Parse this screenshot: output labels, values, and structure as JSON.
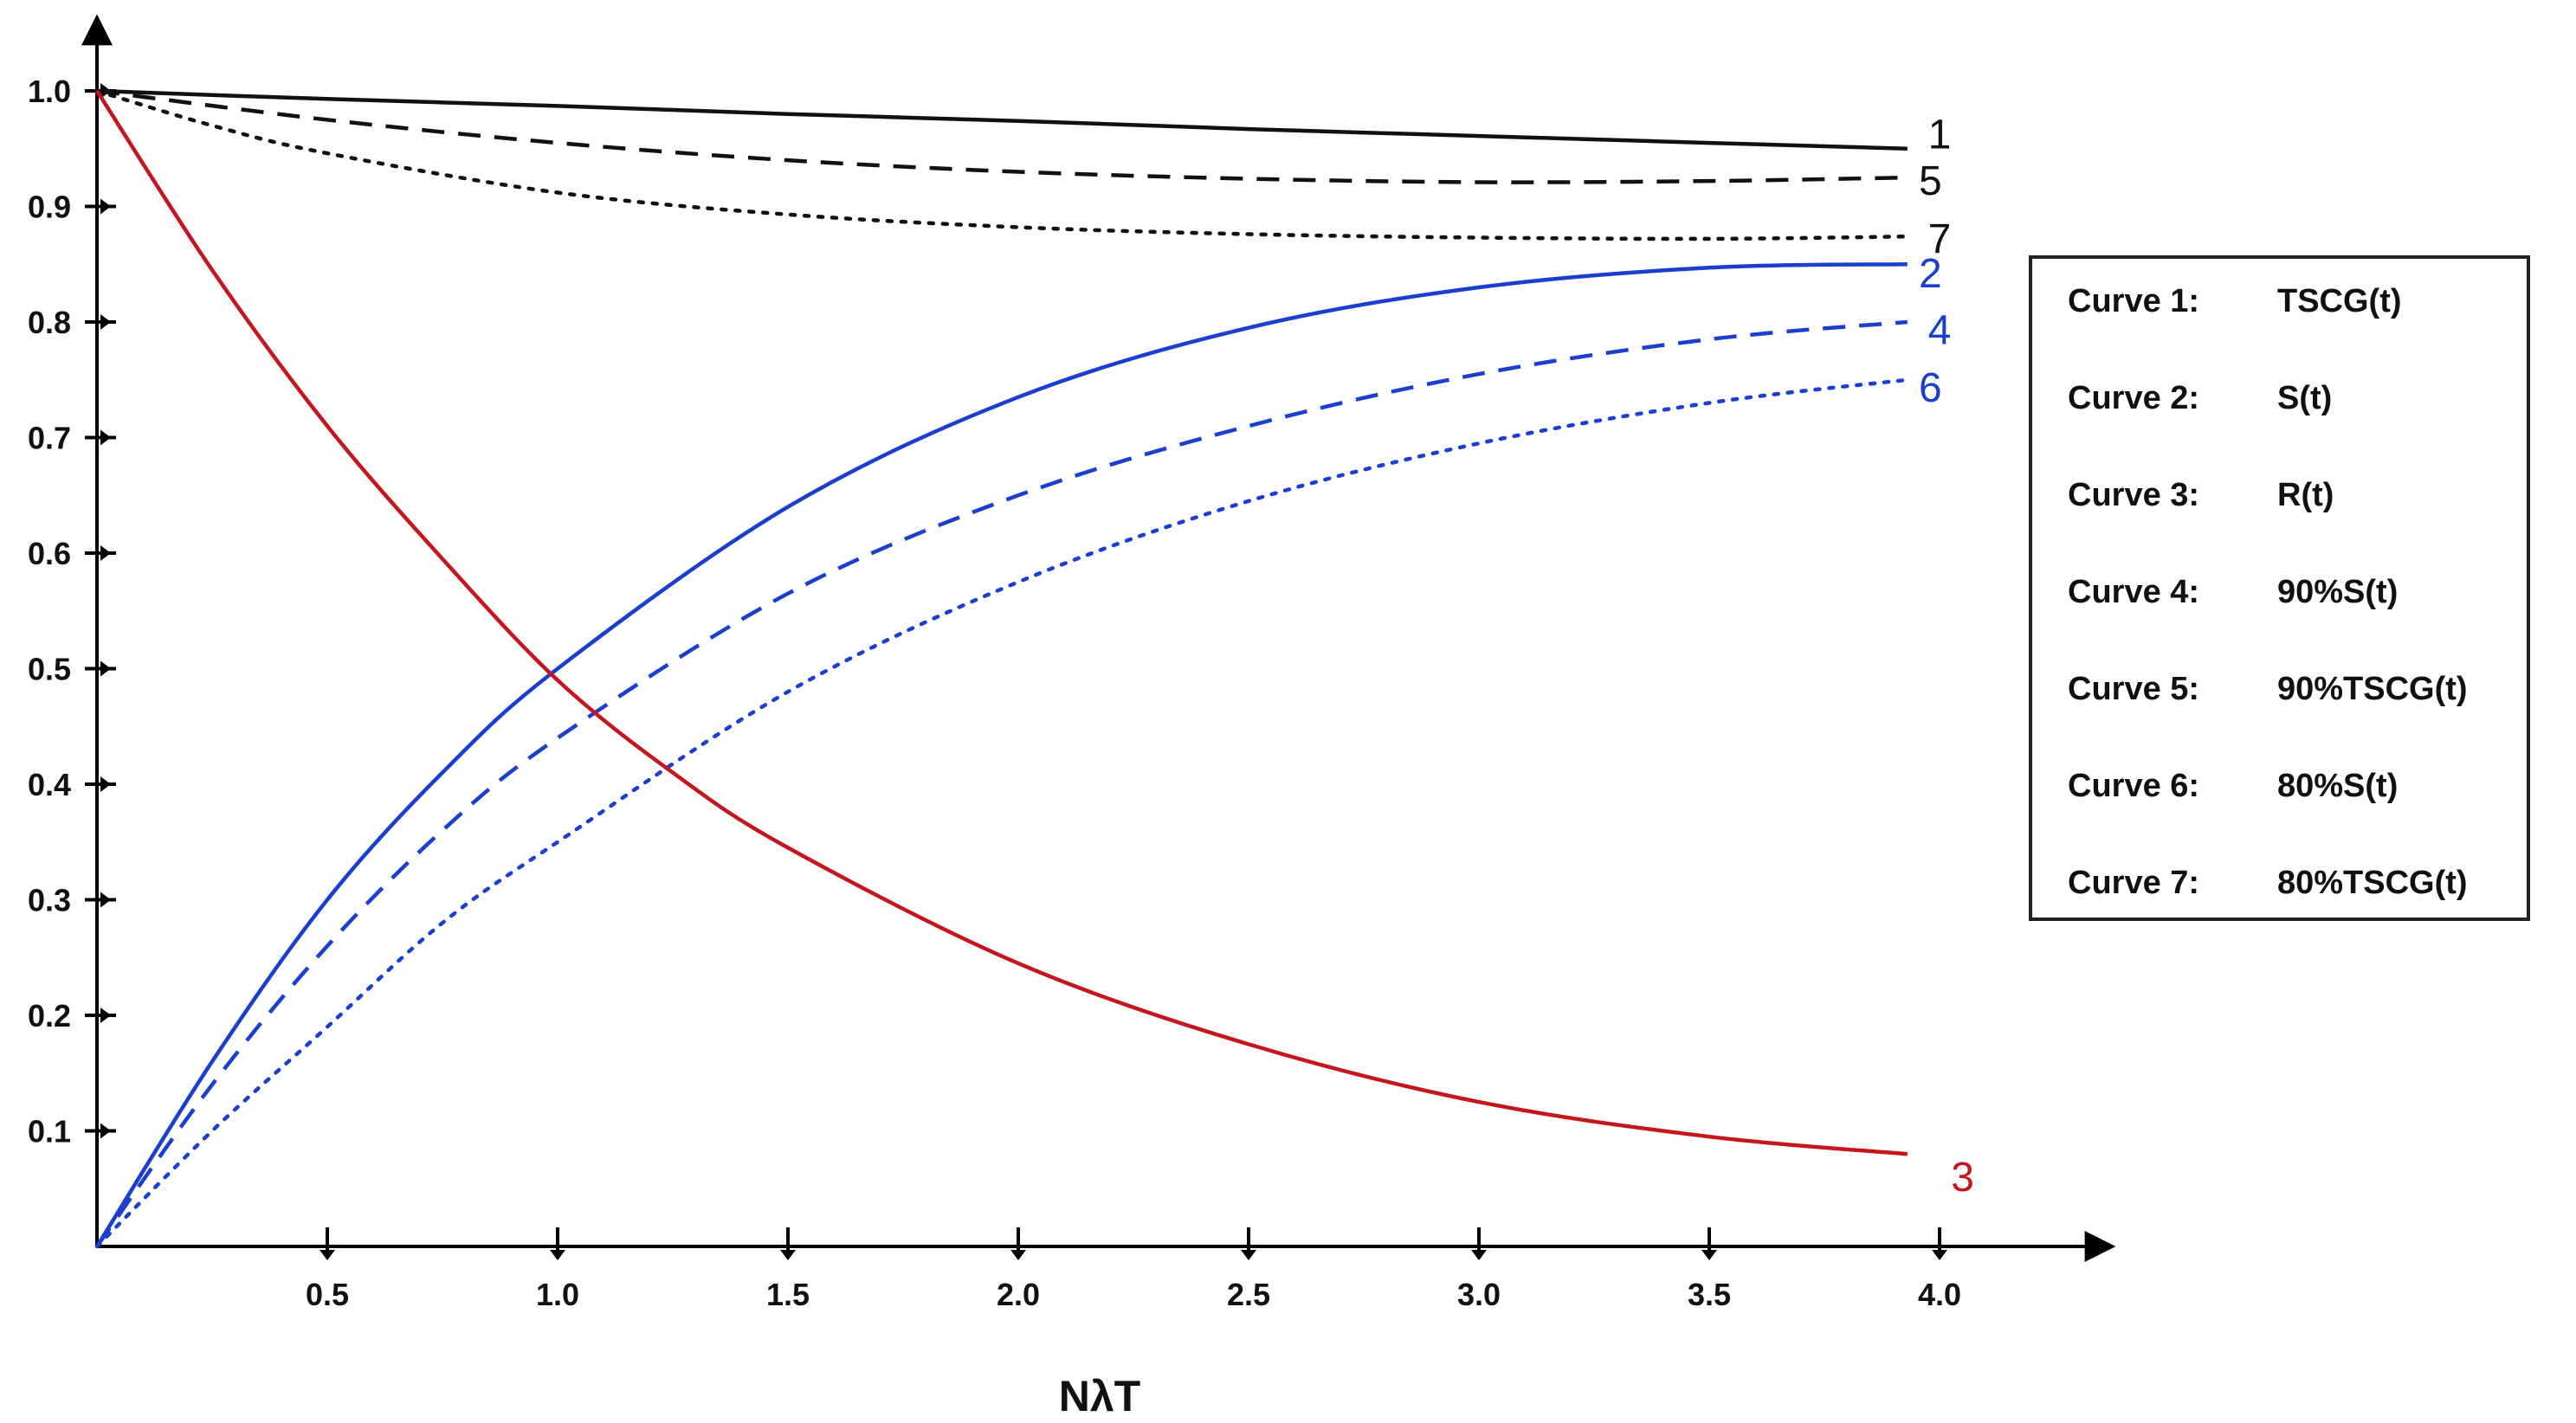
{
  "chart_data": {
    "type": "line",
    "title": "",
    "xlabel": "NλT",
    "ylabel": "",
    "xlim": [
      0,
      4.35
    ],
    "ylim": [
      0,
      1.07
    ],
    "grid": false,
    "x_ticks": [
      {
        "value": 0.5,
        "label": "0.5"
      },
      {
        "value": 1.0,
        "label": "1.0"
      },
      {
        "value": 1.5,
        "label": "1.5"
      },
      {
        "value": 2.0,
        "label": "2.0"
      },
      {
        "value": 2.5,
        "label": "2.5"
      },
      {
        "value": 3.0,
        "label": "3.0"
      },
      {
        "value": 3.5,
        "label": "3.5"
      },
      {
        "value": 4.0,
        "label": "4.0"
      }
    ],
    "y_ticks": [
      {
        "value": 0.1,
        "label": "0.1"
      },
      {
        "value": 0.2,
        "label": "0.2"
      },
      {
        "value": 0.3,
        "label": "0.3"
      },
      {
        "value": 0.4,
        "label": "0.4"
      },
      {
        "value": 0.5,
        "label": "0.5"
      },
      {
        "value": 0.6,
        "label": "0.6"
      },
      {
        "value": 0.7,
        "label": "0.7"
      },
      {
        "value": 0.8,
        "label": "0.8"
      },
      {
        "value": 0.9,
        "label": "0.9"
      },
      {
        "value": 1.0,
        "label": "1.0"
      }
    ],
    "series": [
      {
        "id": "1",
        "name": "TSCG(t)",
        "color": "#111111",
        "style": "solid",
        "x": [
          0,
          0.5,
          1.0,
          1.5,
          2.0,
          2.5,
          3.0,
          3.5,
          3.93
        ],
        "y": [
          1.0,
          0.993,
          0.987,
          0.98,
          0.974,
          0.967,
          0.961,
          0.955,
          0.95
        ],
        "label_pos": {
          "x": 4.0,
          "y": 0.962
        }
      },
      {
        "id": "5",
        "name": "90%TSCG(t)",
        "color": "#111111",
        "style": "dashed",
        "x": [
          0,
          0.5,
          1.0,
          1.5,
          2.0,
          2.5,
          3.0,
          3.5,
          3.93
        ],
        "y": [
          1.0,
          0.975,
          0.955,
          0.94,
          0.93,
          0.924,
          0.921,
          0.922,
          0.925
        ],
        "label_pos": {
          "x": 3.98,
          "y": 0.922
        }
      },
      {
        "id": "7",
        "name": "80%TSCG(t)",
        "color": "#111111",
        "style": "dotted",
        "x": [
          0,
          0.25,
          0.5,
          1.0,
          1.5,
          2.0,
          2.5,
          3.0,
          3.5,
          3.93
        ],
        "y": [
          1.0,
          0.97,
          0.946,
          0.912,
          0.893,
          0.882,
          0.876,
          0.873,
          0.872,
          0.874
        ],
        "label_pos": {
          "x": 4.0,
          "y": 0.872
        }
      },
      {
        "id": "2",
        "name": "S(t)",
        "color": "#1a3fd0",
        "style": "solid",
        "x": [
          0,
          0.25,
          0.5,
          0.75,
          1.0,
          1.5,
          2.0,
          2.5,
          3.0,
          3.5,
          3.93
        ],
        "y": [
          0.0,
          0.16,
          0.3,
          0.41,
          0.5,
          0.64,
          0.735,
          0.795,
          0.83,
          0.847,
          0.85
        ],
        "label_pos": {
          "x": 3.98,
          "y": 0.842
        }
      },
      {
        "id": "4",
        "name": "90%S(t)",
        "color": "#1a3fd0",
        "style": "dashed",
        "x": [
          0,
          0.25,
          0.5,
          0.75,
          1.0,
          1.5,
          2.0,
          2.5,
          3.0,
          3.5,
          3.93
        ],
        "y": [
          0.0,
          0.14,
          0.26,
          0.36,
          0.44,
          0.565,
          0.65,
          0.71,
          0.755,
          0.785,
          0.8
        ],
        "label_pos": {
          "x": 4.0,
          "y": 0.793
        }
      },
      {
        "id": "6",
        "name": "80%S(t)",
        "color": "#1a3fd0",
        "style": "dotted",
        "x": [
          0,
          0.25,
          0.5,
          0.75,
          1.0,
          1.5,
          2.0,
          2.5,
          3.0,
          3.5,
          3.93
        ],
        "y": [
          0.0,
          0.1,
          0.19,
          0.28,
          0.35,
          0.48,
          0.575,
          0.645,
          0.695,
          0.73,
          0.75
        ],
        "label_pos": {
          "x": 3.98,
          "y": 0.743
        }
      },
      {
        "id": "3",
        "name": "R(t)",
        "color": "#c4161c",
        "style": "solid",
        "x": [
          0,
          0.25,
          0.5,
          0.75,
          1.0,
          1.25,
          1.5,
          2.0,
          2.5,
          3.0,
          3.5,
          3.93
        ],
        "y": [
          1.0,
          0.845,
          0.71,
          0.595,
          0.49,
          0.41,
          0.345,
          0.245,
          0.175,
          0.125,
          0.095,
          0.08
        ],
        "label_pos": {
          "x": 4.05,
          "y": 0.06
        }
      }
    ]
  },
  "legend": {
    "placement": "right",
    "entries": [
      {
        "curve": "Curve 1:",
        "name": "TSCG(t)"
      },
      {
        "curve": "Curve 2:",
        "name": "S(t)"
      },
      {
        "curve": "Curve 3:",
        "name": "R(t)"
      },
      {
        "curve": "Curve 4:",
        "name": "90%S(t)"
      },
      {
        "curve": "Curve 5:",
        "name": "90%TSCG(t)"
      },
      {
        "curve": "Curve 6:",
        "name": "80%S(t)"
      },
      {
        "curve": "Curve 7:",
        "name": "80%TSCG(t)"
      }
    ]
  }
}
